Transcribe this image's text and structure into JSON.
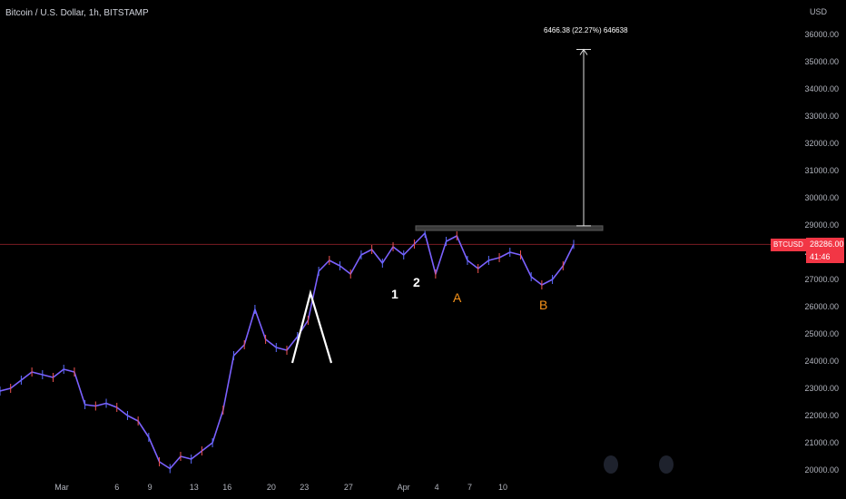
{
  "header": {
    "title": "Bitcoin / U.S. Dollar, 1h, BITSTAMP",
    "currency": "USD"
  },
  "price_axis": {
    "ticks": [
      "36000.00",
      "35000.00",
      "34000.00",
      "33000.00",
      "32000.00",
      "31000.00",
      "30000.00",
      "29000.00",
      "28000.00",
      "27000.00",
      "26000.00",
      "25000.00",
      "24000.00",
      "23000.00",
      "22000.00",
      "21000.00",
      "20000.00"
    ],
    "last_price": "28286.00",
    "countdown": "41:46",
    "symbol": "BTCUSD",
    "colors": {
      "badge": "#f23645",
      "background": "#000000"
    }
  },
  "time_axis": {
    "ticks": [
      "Mar",
      "6",
      "9",
      "13",
      "16",
      "20",
      "23",
      "27",
      "Apr",
      "4",
      "7",
      "10"
    ]
  },
  "annotations": {
    "measure_label": "6466.38 (22.27%) 646638",
    "wave_labels": [
      {
        "text": "1",
        "color": "#ffffff"
      },
      {
        "text": "2",
        "color": "#ffffff"
      },
      {
        "text": "A",
        "color": "#f7931a"
      },
      {
        "text": "B",
        "color": "#f7931a"
      }
    ],
    "icons": [
      "circle-button-icon",
      "circle-button-icon"
    ]
  },
  "chart_data": {
    "type": "candlestick",
    "title": "Bitcoin / U.S. Dollar, 1h, BITSTAMP",
    "ylabel": "USD",
    "ylim": [
      19850,
      36400
    ],
    "x_ticks": [
      "Mar",
      "6",
      "9",
      "13",
      "16",
      "20",
      "23",
      "27",
      "Apr",
      "4",
      "7",
      "10"
    ],
    "last_price": 28286.0,
    "series": [
      {
        "name": "BTCUSD",
        "points": [
          [
            "Feb 28",
            22900
          ],
          [
            "Feb 28 12h",
            23000
          ],
          [
            "Mar 1",
            23300
          ],
          [
            "Mar 1 12h",
            23600
          ],
          [
            "Mar 2",
            23500
          ],
          [
            "Mar 2 12h",
            23400
          ],
          [
            "Mar 3",
            23700
          ],
          [
            "Mar 3 12h",
            23600
          ],
          [
            "Mar 4",
            22400
          ],
          [
            "Mar 5",
            22350
          ],
          [
            "Mar 6",
            22450
          ],
          [
            "Mar 7",
            22300
          ],
          [
            "Mar 8",
            22000
          ],
          [
            "Mar 8 12h",
            21800
          ],
          [
            "Mar 9",
            21200
          ],
          [
            "Mar 9 12h",
            20300
          ],
          [
            "Mar 10",
            20050
          ],
          [
            "Mar 11",
            20500
          ],
          [
            "Mar 11 12h",
            20400
          ],
          [
            "Mar 12",
            20700
          ],
          [
            "Mar 12 12h",
            21000
          ],
          [
            "Mar 13",
            22200
          ],
          [
            "Mar 13 12h",
            24200
          ],
          [
            "Mar 14",
            24600
          ],
          [
            "Mar 14 12h",
            25900
          ],
          [
            "Mar 15",
            24800
          ],
          [
            "Mar 15 12h",
            24500
          ],
          [
            "Mar 16",
            24400
          ],
          [
            "Mar 16 12h",
            24900
          ],
          [
            "Mar 17",
            25500
          ],
          [
            "Mar 17 12h",
            27300
          ],
          [
            "Mar 18",
            27700
          ],
          [
            "Mar 18 12h",
            27500
          ],
          [
            "Mar 19",
            27200
          ],
          [
            "Mar 19 12h",
            27900
          ],
          [
            "Mar 20",
            28100
          ],
          [
            "Mar 20 12h",
            27600
          ],
          [
            "Mar 21",
            28200
          ],
          [
            "Mar 21 12h",
            27900
          ],
          [
            "Mar 22",
            28300
          ],
          [
            "Mar 22 12h",
            28700
          ],
          [
            "Mar 23",
            27200
          ],
          [
            "Mar 23 12h",
            28400
          ],
          [
            "Mar 24",
            28600
          ],
          [
            "Mar 24 12h",
            27700
          ],
          [
            "Mar 25",
            27400
          ],
          [
            "Mar 25 12h",
            27700
          ],
          [
            "Mar 26",
            27800
          ],
          [
            "Mar 26 12h",
            28000
          ],
          [
            "Mar 27",
            27900
          ],
          [
            "Mar 27 12h",
            27100
          ],
          [
            "Mar 28",
            26800
          ],
          [
            "Mar 28 12h",
            27000
          ],
          [
            "Mar 29",
            27500
          ],
          [
            "Mar 29 6h",
            28286
          ]
        ]
      }
    ],
    "resistance_zone": [
      28800,
      28970
    ],
    "measure": {
      "from": 28970,
      "to": 35450,
      "label": "6466.38 (22.27%) 646638"
    }
  }
}
